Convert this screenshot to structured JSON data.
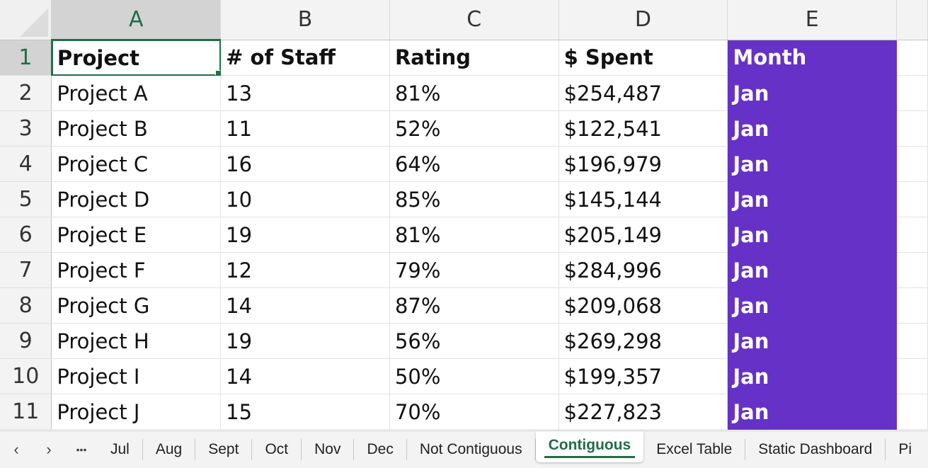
{
  "columns": [
    "A",
    "B",
    "C",
    "D",
    "E"
  ],
  "row_numbers": [
    "1",
    "2",
    "3",
    "4",
    "5",
    "6",
    "7",
    "8",
    "9",
    "10",
    "11"
  ],
  "header_row": [
    "Project",
    "# of Staff",
    "Rating",
    "$ Spent",
    "Month"
  ],
  "rows": [
    [
      "Project A",
      "13",
      "81%",
      "$254,487",
      "Jan"
    ],
    [
      "Project B",
      "11",
      "52%",
      "$122,541",
      "Jan"
    ],
    [
      "Project C",
      "16",
      "64%",
      "$196,979",
      "Jan"
    ],
    [
      "Project D",
      "10",
      "85%",
      "$145,144",
      "Jan"
    ],
    [
      "Project E",
      "19",
      "81%",
      "$205,149",
      "Jan"
    ],
    [
      "Project F",
      "12",
      "79%",
      "$284,996",
      "Jan"
    ],
    [
      "Project G",
      "14",
      "87%",
      "$209,068",
      "Jan"
    ],
    [
      "Project H",
      "19",
      "56%",
      "$269,298",
      "Jan"
    ],
    [
      "Project I",
      "14",
      "50%",
      "$199,357",
      "Jan"
    ],
    [
      "Project J",
      "15",
      "70%",
      "$227,823",
      "Jan"
    ]
  ],
  "highlight_color": "#6631c6",
  "accent_color": "#1e7145",
  "sheet_tabs": {
    "nav_prev": "‹",
    "nav_next": "›",
    "nav_more": "•••",
    "tabs": [
      "Jul",
      "Aug",
      "Sept",
      "Oct",
      "Nov",
      "Dec",
      "Not Contiguous",
      "Contiguous",
      "Excel Table",
      "Static Dashboard",
      "Pi"
    ],
    "active_tab": "Contiguous"
  }
}
